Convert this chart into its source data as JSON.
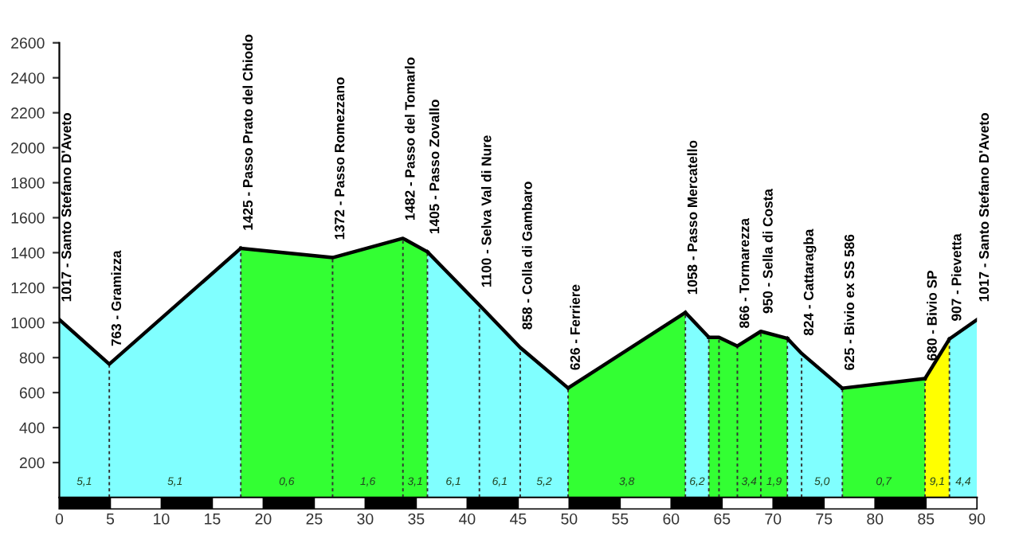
{
  "chart_data": {
    "type": "area",
    "xlim": [
      0,
      90
    ],
    "xticks": [
      0,
      5,
      10,
      15,
      20,
      25,
      30,
      35,
      40,
      45,
      50,
      55,
      60,
      65,
      70,
      75,
      80,
      85,
      90
    ],
    "ylim": [
      0,
      2600
    ],
    "yticks": [
      200,
      400,
      600,
      800,
      1000,
      1200,
      1400,
      1600,
      1800,
      2000,
      2200,
      2400,
      2600
    ],
    "grid": false,
    "ref_lines": [
      {
        "axis": "x",
        "value": 4.9,
        "color": "#333333",
        "line_style": "dashed"
      },
      {
        "axis": "x",
        "value": 17.8,
        "color": "#333333",
        "line_style": "dashed"
      },
      {
        "axis": "x",
        "value": 26.8,
        "color": "#333333",
        "line_style": "dashed"
      },
      {
        "axis": "x",
        "value": 33.7,
        "color": "#333333",
        "line_style": "dashed"
      },
      {
        "axis": "x",
        "value": 36.1,
        "color": "#333333",
        "line_style": "dashed"
      },
      {
        "axis": "x",
        "value": 41.2,
        "color": "#333333",
        "line_style": "dashed"
      },
      {
        "axis": "x",
        "value": 45.2,
        "color": "#333333",
        "line_style": "dashed"
      },
      {
        "axis": "x",
        "value": 49.9,
        "color": "#333333",
        "line_style": "dashed"
      },
      {
        "axis": "x",
        "value": 61.4,
        "color": "#333333",
        "line_style": "dashed"
      },
      {
        "axis": "x",
        "value": 63.7,
        "color": "#333333",
        "line_style": "dashed"
      },
      {
        "axis": "x",
        "value": 64.7,
        "color": "#333333",
        "line_style": "dashed"
      },
      {
        "axis": "x",
        "value": 66.5,
        "color": "#333333",
        "line_style": "dashed"
      },
      {
        "axis": "x",
        "value": 68.8,
        "color": "#333333",
        "line_style": "dashed"
      },
      {
        "axis": "x",
        "value": 71.4,
        "color": "#333333",
        "line_style": "dashed"
      },
      {
        "axis": "x",
        "value": 72.8,
        "color": "#333333",
        "line_style": "dashed"
      },
      {
        "axis": "x",
        "value": 76.8,
        "color": "#333333",
        "line_style": "dashed"
      },
      {
        "axis": "x",
        "value": 84.9,
        "color": "#333333",
        "line_style": "dashed"
      },
      {
        "axis": "x",
        "value": 87.3,
        "color": "#333333",
        "line_style": "dashed"
      }
    ],
    "series": [
      {
        "color": "#80ffff",
        "x": [
          0,
          4.9,
          17.8
        ],
        "values": [
          1017,
          763,
          1425
        ]
      },
      {
        "color": "#33ff33",
        "x": [
          17.8,
          26.8,
          33.7,
          36.1
        ],
        "values": [
          1425,
          1372,
          1482,
          1405
        ]
      },
      {
        "color": "#80ffff",
        "x": [
          36.1,
          41.2,
          45.2,
          49.9
        ],
        "values": [
          1405,
          1100,
          858,
          626
        ]
      },
      {
        "color": "#33ff33",
        "x": [
          49.9,
          61.4
        ],
        "values": [
          626,
          1058
        ]
      },
      {
        "color": "#80ffff",
        "x": [
          61.4,
          63.7
        ],
        "values": [
          1058,
          916
        ]
      },
      {
        "color": "#33ff33",
        "x": [
          63.7,
          64.7,
          66.5,
          68.8,
          71.4
        ],
        "values": [
          916,
          916,
          866,
          950,
          910
        ]
      },
      {
        "color": "#80ffff",
        "x": [
          71.4,
          72.8,
          76.8
        ],
        "values": [
          910,
          824,
          625
        ]
      },
      {
        "color": "#33ff33",
        "x": [
          76.8,
          84.9
        ],
        "values": [
          625,
          680
        ]
      },
      {
        "color": "#ffff00",
        "x": [
          84.9,
          87.3
        ],
        "values": [
          680,
          907
        ]
      },
      {
        "color": "#80ffff",
        "x": [
          87.3,
          90
        ],
        "values": [
          907,
          1017
        ]
      }
    ],
    "annotations": [
      {
        "text": "1017 - Santo Stefano D'Aveto",
        "x": 0,
        "y": 1017
      },
      {
        "text": "763 - Gramizza",
        "x": 4.9,
        "y": 763
      },
      {
        "text": "1425 - Passo Prato del Chiodo",
        "x": 17.8,
        "y": 1425
      },
      {
        "text": "1372 - Passo Romezzano",
        "x": 26.8,
        "y": 1372
      },
      {
        "text": "1482 - Passo del Tomarlo",
        "x": 33.7,
        "y": 1482
      },
      {
        "text": "1405 - Passo Zovallo",
        "x": 36.1,
        "y": 1405
      },
      {
        "text": "1100 - Selva Val di Nure",
        "x": 41.2,
        "y": 1100
      },
      {
        "text": "858 - Colla di Gambaro",
        "x": 45.2,
        "y": 858
      },
      {
        "text": "626 - Ferriere",
        "x": 49.9,
        "y": 626
      },
      {
        "text": "1058 - Passo Mercatello",
        "x": 61.4,
        "y": 1058
      },
      {
        "text": "866 - Tormarezza",
        "x": 66.5,
        "y": 866
      },
      {
        "text": "950 - Sella di Costa",
        "x": 68.8,
        "y": 950
      },
      {
        "text": "824 - Cattaragba",
        "x": 72.8,
        "y": 824
      },
      {
        "text": "625 - Bivio ex SS 586",
        "x": 76.8,
        "y": 625
      },
      {
        "text": "680 - Bivio SP",
        "x": 84.9,
        "y": 680
      },
      {
        "text": "907 - Pievetta",
        "x": 87.3,
        "y": 907
      },
      {
        "text": "1017 - Santo Stefano D'Aveto",
        "x": 90,
        "y": 1017
      },
      "5,1",
      "5,1",
      "0,6",
      "1,6",
      "3,1",
      "6,1",
      "6,1",
      "5,2",
      "3,8",
      "6,2",
      "3,4",
      "1,9",
      "5,0",
      "0,7",
      "9,1",
      "4,4"
    ]
  }
}
